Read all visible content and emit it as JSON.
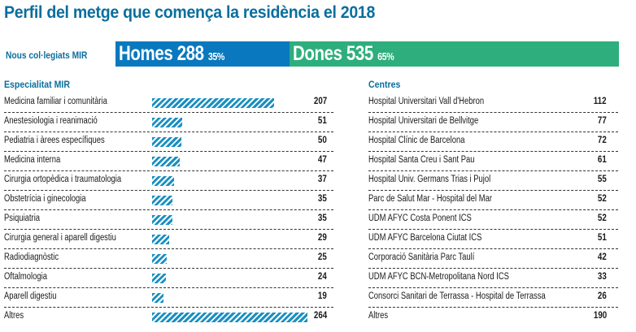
{
  "title": "Perfil del metge que comença la residència el 2018",
  "mir": {
    "label": "Nous col·legiats MIR",
    "homes": {
      "label": "Homes",
      "value": "288",
      "pct": "35%",
      "color": "#0a78be"
    },
    "dones": {
      "label": "Dones",
      "value": "535",
      "pct": "65%",
      "color": "#2eae7d"
    }
  },
  "chart_data": [
    {
      "type": "bar",
      "title": "Especialitat MIR",
      "orientation": "horizontal",
      "bar_color": "#1a8fc2",
      "bar_pattern": "diagonal-hatch",
      "categories": [
        "Medicina familiar i comunitària",
        "Anestesiologia i reanimació",
        "Pediatria i àrees específiques",
        "Medicina interna",
        "Cirurgia ortopèdica i traumatologia",
        "Obstetrícia i ginecologia",
        "Psiquiatria",
        "Cirurgia general i aparell digestiu",
        "Radiodiagnòstic",
        "Oftalmologia",
        "Aparell digestiu",
        "Altres"
      ],
      "values": [
        207,
        51,
        50,
        47,
        37,
        35,
        35,
        29,
        25,
        24,
        19,
        264
      ],
      "xlim": [
        0,
        264
      ]
    },
    {
      "type": "table",
      "title": "Centres",
      "categories": [
        "Hospital Universitari Vall d'Hebron",
        "Hospital Universitari de Bellvitge",
        "Hospital Clínic de Barcelona",
        "Hospital Santa Creu i Sant Pau",
        "Hospital Univ. Germans Trias i Pujol",
        "Parc de Salut Mar - Hospital del Mar",
        "UDM AFYC Costa Ponent ICS",
        "UDM AFYC Barcelona Ciutat ICS",
        "Corporació Sanitària Parc Taulí",
        "UDM AFYC BCN-Metropolitana Nord ICS",
        "Consorci Sanitari de Terrassa - Hospital de Terrassa",
        "Altres"
      ],
      "values": [
        112,
        77,
        72,
        61,
        55,
        52,
        52,
        51,
        42,
        33,
        26,
        190
      ]
    }
  ]
}
